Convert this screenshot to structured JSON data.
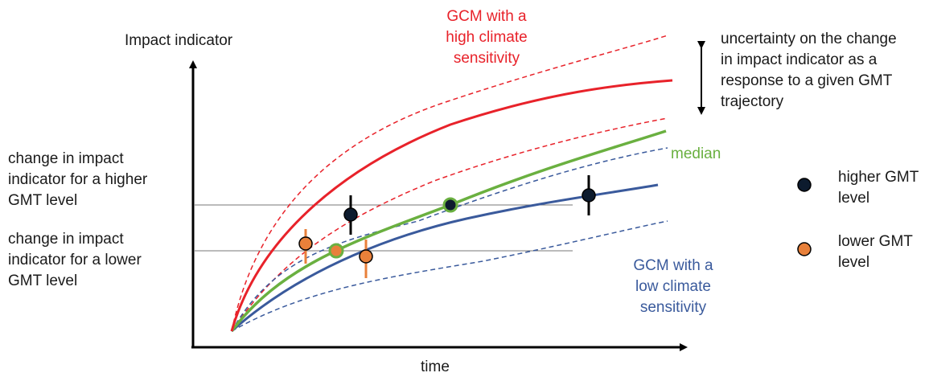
{
  "axes": {
    "y_label": "Impact indicator",
    "x_label": "time"
  },
  "curves": {
    "high": {
      "label_lines": [
        "GCM with a",
        "high climate",
        "sensitivity"
      ],
      "color": "#e8222a"
    },
    "median": {
      "label": "median",
      "color": "#6ab040"
    },
    "low": {
      "label_lines": [
        "GCM with a",
        "low climate",
        "sensitivity"
      ],
      "color": "#3a5a9c"
    }
  },
  "annotations": {
    "uncertainty_lines": [
      "uncertainty on the change",
      "in impact indicator as a",
      "response to a given GMT",
      "trajectory"
    ],
    "higher_change_lines": [
      "change in impact",
      "indicator for a higher",
      "GMT level"
    ],
    "lower_change_lines": [
      "change in impact",
      "indicator for a lower",
      "GMT level"
    ]
  },
  "legend": {
    "higher": {
      "label_lines": [
        "higher GMT",
        "level"
      ],
      "color": "#0d1b2e"
    },
    "lower": {
      "label_lines": [
        "lower GMT",
        "level"
      ],
      "color": "#e8803a"
    }
  }
}
